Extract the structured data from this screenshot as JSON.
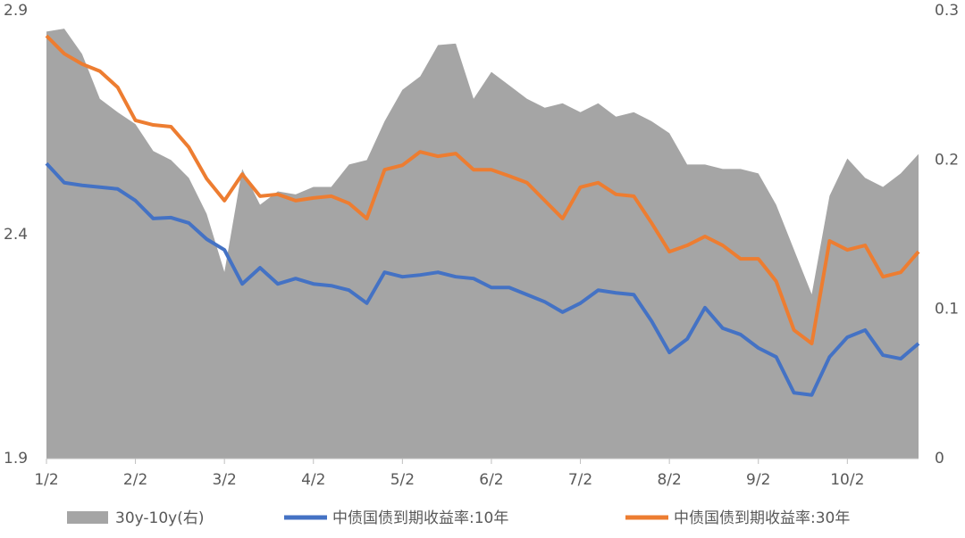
{
  "chart_data": {
    "type": "line",
    "categories": [
      "1/2",
      null,
      null,
      null,
      null,
      "2/2",
      null,
      null,
      null,
      null,
      "3/2",
      null,
      null,
      null,
      null,
      "4/2",
      null,
      null,
      null,
      null,
      "5/2",
      null,
      null,
      null,
      null,
      "6/2",
      null,
      null,
      null,
      null,
      "7/2",
      null,
      null,
      null,
      null,
      "8/2",
      null,
      null,
      null,
      null,
      "9/2",
      null,
      null,
      null,
      null,
      "10/2",
      null,
      null,
      null,
      null
    ],
    "ylim": [
      1.9,
      2.9
    ],
    "yticks": [
      1.9,
      2.4,
      2.9
    ],
    "y2lim": [
      0,
      0.3
    ],
    "y2ticks": [
      0,
      0.1,
      0.2,
      0.3
    ],
    "series": [
      {
        "name": "30y-10y(右)",
        "type": "area",
        "axis": "y2",
        "color": "#a5a5a5",
        "values": [
          0.286,
          0.288,
          0.271,
          0.241,
          0.232,
          0.224,
          0.206,
          0.2,
          0.188,
          0.164,
          0.125,
          0.194,
          0.17,
          0.179,
          0.177,
          0.182,
          0.182,
          0.197,
          0.2,
          0.226,
          0.247,
          0.256,
          0.277,
          0.278,
          0.241,
          0.259,
          0.25,
          0.241,
          0.235,
          0.238,
          0.232,
          0.238,
          0.229,
          0.232,
          0.226,
          0.218,
          0.197,
          0.197,
          0.194,
          0.194,
          0.191,
          0.17,
          0.14,
          0.11,
          0.176,
          0.201,
          0.188,
          0.182,
          0.191,
          0.204
        ]
      },
      {
        "name": "中债国债到期收益率:10年",
        "type": "line",
        "color": "#4472c4",
        "values": [
          2.559,
          2.516,
          2.51,
          2.506,
          2.502,
          2.476,
          2.436,
          2.438,
          2.426,
          2.39,
          2.366,
          2.29,
          2.326,
          2.29,
          2.302,
          2.29,
          2.286,
          2.276,
          2.247,
          2.316,
          2.306,
          2.31,
          2.316,
          2.306,
          2.302,
          2.282,
          2.282,
          2.266,
          2.25,
          2.227,
          2.247,
          2.276,
          2.27,
          2.266,
          2.207,
          2.137,
          2.167,
          2.237,
          2.191,
          2.177,
          2.147,
          2.127,
          2.047,
          2.042,
          2.127,
          2.171,
          2.187,
          2.131,
          2.123,
          2.157
        ]
      },
      {
        "name": "中债国债到期收益率:30年",
        "type": "line",
        "color": "#ed7d31",
        "values": [
          2.844,
          2.804,
          2.781,
          2.765,
          2.729,
          2.655,
          2.645,
          2.641,
          2.595,
          2.525,
          2.476,
          2.535,
          2.486,
          2.49,
          2.476,
          2.482,
          2.486,
          2.47,
          2.436,
          2.545,
          2.555,
          2.585,
          2.575,
          2.581,
          2.545,
          2.545,
          2.531,
          2.516,
          2.476,
          2.436,
          2.506,
          2.516,
          2.49,
          2.486,
          2.426,
          2.362,
          2.376,
          2.396,
          2.376,
          2.346,
          2.346,
          2.296,
          2.187,
          2.157,
          2.386,
          2.366,
          2.376,
          2.306,
          2.316,
          2.362
        ]
      }
    ]
  }
}
